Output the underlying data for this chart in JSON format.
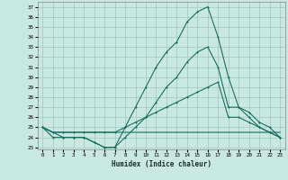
{
  "xlabel": "Humidex (Indice chaleur)",
  "bg_color": "#c8e8e0",
  "line_color": "#1a7060",
  "grid_color": "#a0c8c0",
  "xlim": [
    -0.5,
    23.5
  ],
  "ylim": [
    22.8,
    37.5
  ],
  "xticks": [
    0,
    1,
    2,
    3,
    4,
    5,
    6,
    7,
    8,
    9,
    10,
    11,
    12,
    13,
    14,
    15,
    16,
    17,
    18,
    19,
    20,
    21,
    22,
    23
  ],
  "yticks": [
    23,
    24,
    25,
    26,
    27,
    28,
    29,
    30,
    31,
    32,
    33,
    34,
    35,
    36,
    37
  ],
  "line1": {
    "x": [
      0,
      1,
      2,
      3,
      4,
      5,
      6,
      7,
      8,
      9,
      10,
      11,
      12,
      13,
      14,
      15,
      16,
      17,
      18,
      19,
      20,
      21,
      22,
      23
    ],
    "y": [
      25,
      24.5,
      24.5,
      24.5,
      24.5,
      24.5,
      24.5,
      24.5,
      24.5,
      24.5,
      24.5,
      24.5,
      24.5,
      24.5,
      24.5,
      24.5,
      24.5,
      24.5,
      24.5,
      24.5,
      24.5,
      24.5,
      24.5,
      24.5
    ],
    "marker": false
  },
  "line2": {
    "x": [
      0,
      1,
      2,
      3,
      4,
      5,
      6,
      7,
      8,
      9,
      10,
      11,
      12,
      13,
      14,
      15,
      16,
      17,
      18,
      19,
      20,
      21,
      22,
      23
    ],
    "y": [
      25,
      24.5,
      24.5,
      24.5,
      24.5,
      24.5,
      24.5,
      24.5,
      25,
      25.5,
      26,
      26.5,
      27,
      27.5,
      28,
      28.5,
      29,
      29.5,
      26,
      26,
      25.5,
      25,
      24.5,
      24
    ],
    "marker": true
  },
  "line3": {
    "x": [
      0,
      1,
      2,
      3,
      4,
      5,
      6,
      7,
      8,
      9,
      10,
      11,
      12,
      13,
      14,
      15,
      16,
      17,
      18,
      19,
      20,
      21,
      22,
      23
    ],
    "y": [
      25,
      24.5,
      24,
      24,
      24,
      23.5,
      23,
      23,
      24,
      25,
      26,
      27.5,
      29,
      30,
      31.5,
      32.5,
      33,
      31,
      27,
      27,
      26,
      25,
      24.5,
      24
    ],
    "marker": true
  },
  "line4": {
    "x": [
      0,
      1,
      2,
      3,
      4,
      5,
      6,
      7,
      8,
      9,
      10,
      11,
      12,
      13,
      14,
      15,
      16,
      17,
      18,
      19,
      20,
      21,
      22,
      23
    ],
    "y": [
      25,
      24,
      24,
      24,
      24,
      23.5,
      23,
      23,
      25,
      27,
      29,
      31,
      32.5,
      33.5,
      35.5,
      36.5,
      37,
      34,
      30,
      27,
      26.5,
      25.5,
      25,
      24
    ],
    "marker": true
  }
}
